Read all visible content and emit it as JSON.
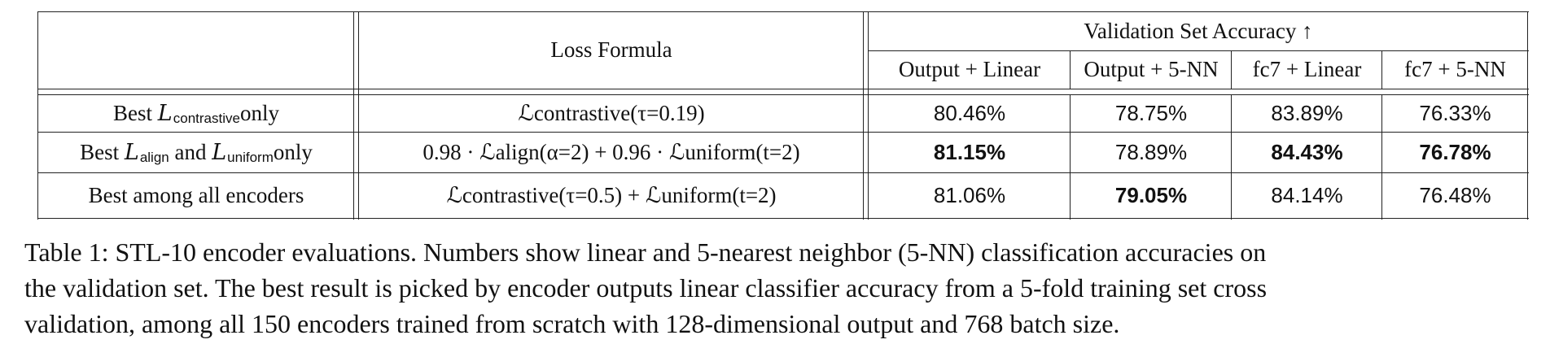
{
  "table": {
    "header": {
      "loss_formula": "Loss Formula",
      "val_group": "Validation Set Accuracy ↑",
      "columns": [
        "Output + Linear",
        "Output + 5-NN",
        "fc7 + Linear",
        "fc7 + 5-NN"
      ]
    },
    "rows": [
      {
        "label_pre": "Best ",
        "label_l1": "L",
        "label_s1": "contrastive",
        "label_post": " only",
        "formula": "ℒcontrastive(τ=0.19)",
        "values": [
          "80.46%",
          "78.75%",
          "83.89%",
          "76.33%"
        ],
        "bold": [
          false,
          false,
          false,
          false
        ]
      },
      {
        "label_pre": "Best ",
        "label_l1": "L",
        "label_s1": "align",
        "label_mid": " and ",
        "label_l2": "L",
        "label_s2": "uniform",
        "label_post": " only",
        "formula": "0.98 · ℒalign(α=2) + 0.96 · ℒuniform(t=2)",
        "values": [
          "81.15%",
          "78.89%",
          "84.43%",
          "76.78%"
        ],
        "bold": [
          true,
          false,
          true,
          true
        ]
      },
      {
        "label": "Best among all encoders",
        "formula": "ℒcontrastive(τ=0.5) + ℒuniform(t=2)",
        "values": [
          "81.06%",
          "79.05%",
          "84.14%",
          "76.48%"
        ],
        "bold": [
          false,
          true,
          false,
          false
        ]
      }
    ]
  },
  "caption": [
    "Table 1: STL-10 encoder evaluations. Numbers show linear and 5-nearest neighbor (5-NN) classification accuracies on",
    "the validation set. The best result is picked by encoder outputs linear classifier accuracy from a 5-fold training set cross",
    "validation, among all 150 encoders trained from scratch with 128-dimensional output and 768 batch size."
  ]
}
